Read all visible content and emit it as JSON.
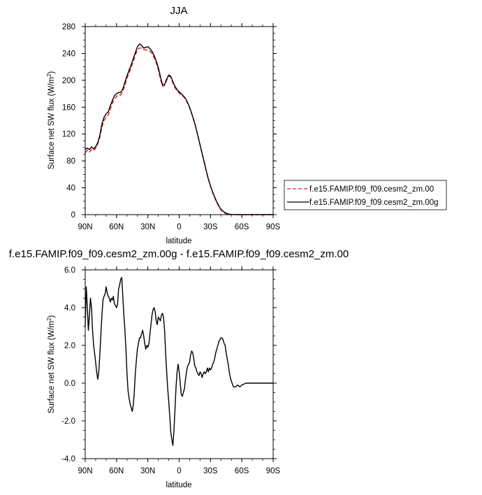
{
  "chart_data": [
    {
      "type": "line",
      "title": "JJA",
      "xlabel": "latitude",
      "ylabel_main": "Surface net SW flux (W/m",
      "ylabel_sup": "2",
      "ylabel_close": ")",
      "xlim": [
        90,
        -90
      ],
      "ylim": [
        0,
        280
      ],
      "xticks": [
        {
          "value": 90,
          "label": "90N"
        },
        {
          "value": 60,
          "label": "60N"
        },
        {
          "value": 30,
          "label": "30N"
        },
        {
          "value": 0,
          "label": "0"
        },
        {
          "value": -30,
          "label": "30S"
        },
        {
          "value": -60,
          "label": "60S"
        },
        {
          "value": -90,
          "label": "90S"
        }
      ],
      "yticks": [
        {
          "value": 0,
          "label": "0"
        },
        {
          "value": 40,
          "label": "40"
        },
        {
          "value": 80,
          "label": "80"
        },
        {
          "value": 120,
          "label": "120"
        },
        {
          "value": 160,
          "label": "160"
        },
        {
          "value": 200,
          "label": "200"
        },
        {
          "value": 240,
          "label": "240"
        },
        {
          "value": 280,
          "label": "280"
        }
      ],
      "grid": false,
      "legend_position": "right",
      "series": [
        {
          "name": "f.e15.FAMIP.f09_f09.cesm2_zm.00",
          "color": "#e8161b",
          "dash": true,
          "x": [
            90,
            88,
            86,
            84,
            82,
            80,
            78,
            76,
            74,
            72,
            70,
            68,
            66,
            64,
            62,
            60,
            58,
            56,
            54,
            52,
            50,
            48,
            46,
            44,
            42,
            40,
            38,
            36,
            34,
            32,
            30,
            28,
            26,
            24,
            22,
            20,
            18,
            16,
            14,
            12,
            10,
            8,
            6,
            4,
            2,
            0,
            -2,
            -4,
            -6,
            -8,
            -10,
            -12,
            -14,
            -16,
            -18,
            -20,
            -22,
            -24,
            -26,
            -28,
            -30,
            -32,
            -34,
            -36,
            -38,
            -40,
            -42,
            -44,
            -46,
            -48,
            -50,
            -52,
            -54,
            -56,
            -58,
            -60,
            -62,
            -64,
            -66,
            -68,
            -70,
            -72,
            -74,
            -76,
            -78,
            -80,
            -82,
            -84,
            -86,
            -88,
            -90
          ],
          "y": [
            92,
            96,
            93,
            97,
            95,
            99,
            105,
            115,
            130,
            140,
            145,
            148,
            157,
            166,
            172,
            176,
            178,
            178,
            183,
            193,
            203,
            211,
            219,
            228,
            237,
            246,
            248,
            248,
            246,
            245,
            245,
            243,
            240,
            234,
            226,
            216,
            202,
            191,
            192,
            200,
            206,
            205,
            196,
            189,
            184,
            181,
            178,
            176,
            172,
            166,
            159,
            150,
            140,
            129,
            116,
            103,
            90,
            77,
            64,
            52,
            42,
            33,
            25,
            18,
            12,
            7,
            4,
            2,
            1,
            0.5,
            0.2,
            0.1,
            0,
            0,
            0,
            0,
            0,
            0,
            0,
            0,
            0,
            0,
            0,
            0,
            0,
            0,
            0,
            0,
            0,
            0,
            0
          ]
        },
        {
          "name": "f.e15.FAMIP.f09_f09.cesm2_zm.00g",
          "color": "#000000",
          "dash": false,
          "x": [
            90,
            88,
            86,
            84,
            82,
            80,
            78,
            76,
            74,
            72,
            70,
            68,
            66,
            64,
            62,
            60,
            58,
            56,
            54,
            52,
            50,
            48,
            46,
            44,
            42,
            40,
            38,
            36,
            34,
            32,
            30,
            28,
            26,
            24,
            22,
            20,
            18,
            16,
            14,
            12,
            10,
            8,
            6,
            4,
            2,
            0,
            -2,
            -4,
            -6,
            -8,
            -10,
            -12,
            -14,
            -16,
            -18,
            -20,
            -22,
            -24,
            -26,
            -28,
            -30,
            -32,
            -34,
            -36,
            -38,
            -40,
            -42,
            -44,
            -46,
            -48,
            -50,
            -52,
            -54,
            -56,
            -58,
            -60,
            -62,
            -64,
            -66,
            -68,
            -70,
            -72,
            -74,
            -76,
            -78,
            -80,
            -82,
            -84,
            -86,
            -88,
            -90
          ],
          "y": [
            97,
            99,
            97,
            101,
            98,
            101,
            107,
            118,
            135,
            145,
            150,
            153,
            162,
            170,
            177,
            180,
            182,
            182,
            187,
            197,
            207,
            215,
            223,
            232,
            241,
            250,
            254,
            252,
            248,
            249,
            250,
            247,
            243,
            237,
            229,
            219,
            206,
            193,
            194,
            202,
            208,
            206,
            198,
            191,
            186,
            183,
            180,
            177,
            173,
            167,
            160,
            151,
            141,
            130,
            117,
            104,
            91,
            78,
            65,
            53,
            43,
            34,
            26,
            19,
            13,
            8,
            5,
            3,
            1.5,
            0.7,
            0.3,
            0.1,
            0,
            0,
            0,
            0,
            0,
            0,
            0,
            0,
            0,
            0,
            0,
            0,
            0,
            0,
            0,
            0,
            0,
            0,
            0
          ]
        }
      ]
    },
    {
      "type": "line",
      "title": "f.e15.FAMIP.f09_f09.cesm2_zm.00g - f.e15.FAMIP.f09_f09.cesm2_zm.00",
      "xlabel": "latitude",
      "ylabel_main": "Surface net SW flux (W/m",
      "ylabel_sup": "2",
      "ylabel_close": ")",
      "xlim": [
        90,
        -90
      ],
      "ylim": [
        -4,
        6
      ],
      "xticks": [
        {
          "value": 90,
          "label": "90N"
        },
        {
          "value": 60,
          "label": "60N"
        },
        {
          "value": 30,
          "label": "30N"
        },
        {
          "value": 0,
          "label": "0"
        },
        {
          "value": -30,
          "label": "30S"
        },
        {
          "value": -60,
          "label": "60S"
        },
        {
          "value": -90,
          "label": "90S"
        }
      ],
      "yticks": [
        {
          "value": -4,
          "label": "-4.0"
        },
        {
          "value": -2,
          "label": "-2.0"
        },
        {
          "value": 0,
          "label": "0.0"
        },
        {
          "value": 2,
          "label": "2.0"
        },
        {
          "value": 4,
          "label": "4.0"
        },
        {
          "value": 6,
          "label": "6.0"
        }
      ],
      "grid": false,
      "series": [
        {
          "name": "",
          "color": "#000000",
          "dash": false,
          "x": [
            90,
            89,
            88,
            87,
            86,
            85,
            84,
            83,
            82,
            81,
            80,
            79,
            78,
            77,
            76,
            75,
            74,
            73,
            72,
            71,
            70,
            69,
            68,
            67,
            66,
            65,
            64,
            63,
            62,
            61,
            60,
            59,
            58,
            57,
            56,
            55,
            54,
            53,
            52,
            51,
            50,
            49,
            48,
            47,
            46,
            45,
            44,
            43,
            42,
            41,
            40,
            39,
            38,
            37,
            36,
            35,
            34,
            33,
            32,
            31,
            30,
            29,
            28,
            27,
            26,
            25,
            24,
            23,
            22,
            21,
            20,
            19,
            18,
            17,
            16,
            15,
            14,
            13,
            12,
            11,
            10,
            9,
            8,
            7,
            6,
            5,
            4,
            3,
            2,
            1,
            0,
            -1,
            -2,
            -3,
            -4,
            -5,
            -6,
            -7,
            -8,
            -9,
            -10,
            -11,
            -12,
            -13,
            -14,
            -15,
            -16,
            -17,
            -18,
            -19,
            -20,
            -21,
            -22,
            -23,
            -24,
            -25,
            -26,
            -27,
            -28,
            -29,
            -30,
            -31,
            -32,
            -33,
            -34,
            -35,
            -36,
            -37,
            -38,
            -39,
            -40,
            -41,
            -42,
            -43,
            -44,
            -45,
            -46,
            -47,
            -48,
            -49,
            -50,
            -52,
            -54,
            -56,
            -58,
            -60,
            -62,
            -64,
            -66,
            -70,
            -75,
            -80,
            -85,
            -90
          ],
          "y": [
            3.0,
            5.1,
            4.0,
            2.8,
            3.6,
            4.5,
            4.0,
            2.8,
            2.0,
            1.6,
            1.1,
            0.6,
            0.2,
            0.6,
            1.5,
            2.6,
            3.6,
            4.4,
            4.6,
            4.7,
            5.1,
            4.8,
            4.6,
            4.5,
            4.3,
            4.5,
            4.4,
            4.6,
            4.2,
            4.1,
            4.0,
            4.2,
            5.0,
            5.2,
            5.5,
            5.6,
            4.6,
            3.6,
            2.8,
            1.8,
            0.5,
            -0.4,
            -0.8,
            -1.1,
            -1.3,
            -1.5,
            -1.2,
            -0.5,
            0.5,
            1.2,
            1.8,
            2.1,
            2.4,
            2.4,
            2.6,
            2.8,
            2.5,
            2.1,
            1.8,
            2.0,
            1.9,
            2.1,
            2.6,
            3.1,
            3.6,
            3.9,
            4.0,
            3.8,
            3.3,
            3.1,
            3.5,
            3.4,
            3.3,
            3.6,
            3.7,
            3.5,
            2.8,
            1.6,
            0.6,
            -0.3,
            -1.0,
            -1.8,
            -2.6,
            -3.0,
            -3.3,
            -2.5,
            -1.4,
            -0.2,
            0.6,
            1.0,
            0.6,
            0.0,
            -0.6,
            -0.7,
            -0.5,
            -0.3,
            0.2,
            0.6,
            0.9,
            1.0,
            1.1,
            1.5,
            1.7,
            1.6,
            1.3,
            0.9,
            0.8,
            0.6,
            0.5,
            0.4,
            0.6,
            0.5,
            0.3,
            0.5,
            0.6,
            0.5,
            0.6,
            0.8,
            0.6,
            0.8,
            0.7,
            0.8,
            1.0,
            1.1,
            1.3,
            1.6,
            1.8,
            2.0,
            2.2,
            2.3,
            2.4,
            2.4,
            2.3,
            2.1,
            2.0,
            1.6,
            1.3,
            1.0,
            0.6,
            0.3,
            0.1,
            -0.2,
            -0.2,
            -0.1,
            -0.2,
            -0.1,
            -0.05,
            0.0,
            0.0,
            0.0,
            0.0,
            0.0,
            0.0,
            0.0
          ]
        }
      ]
    }
  ]
}
